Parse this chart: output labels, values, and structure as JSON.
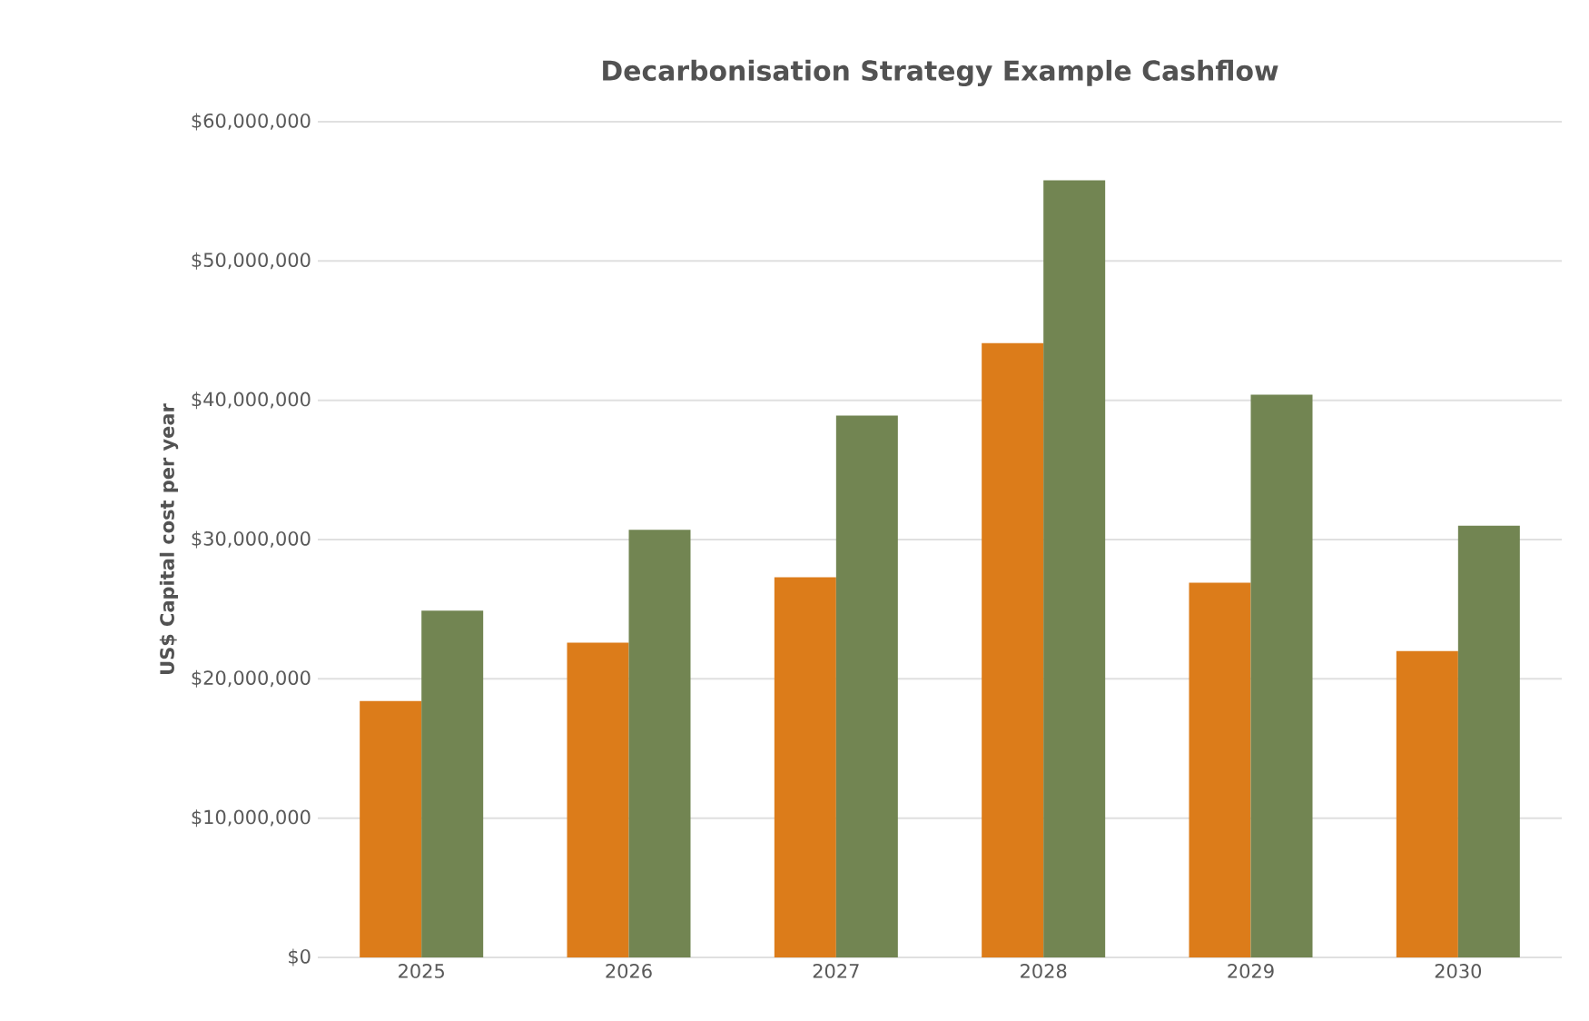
{
  "chart_data": {
    "type": "bar",
    "title": "Decarbonisation Strategy Example Cashflow",
    "ylabel": "US$ Capital cost per year",
    "categories": [
      "2025",
      "2026",
      "2027",
      "2028",
      "2029",
      "2030"
    ],
    "series": [
      {
        "color": "#dc7c1a",
        "values": [
          18400000,
          22600000,
          27300000,
          44100000,
          26900000,
          22000000
        ]
      },
      {
        "color": "#728552",
        "values": [
          24900000,
          30700000,
          38900000,
          55800000,
          40400000,
          31000000
        ]
      }
    ],
    "ylim": [
      0,
      60000000
    ],
    "yticks": [
      {
        "value": 0,
        "label": "$0"
      },
      {
        "value": 10000000,
        "label": "$10,000,000"
      },
      {
        "value": 20000000,
        "label": "$20,000,000"
      },
      {
        "value": 30000000,
        "label": "$30,000,000"
      },
      {
        "value": 40000000,
        "label": "$40,000,000"
      },
      {
        "value": 50000000,
        "label": "$50,000,000"
      },
      {
        "value": 60000000,
        "label": "$60,000,000"
      }
    ],
    "grid": "y",
    "legend": false
  }
}
